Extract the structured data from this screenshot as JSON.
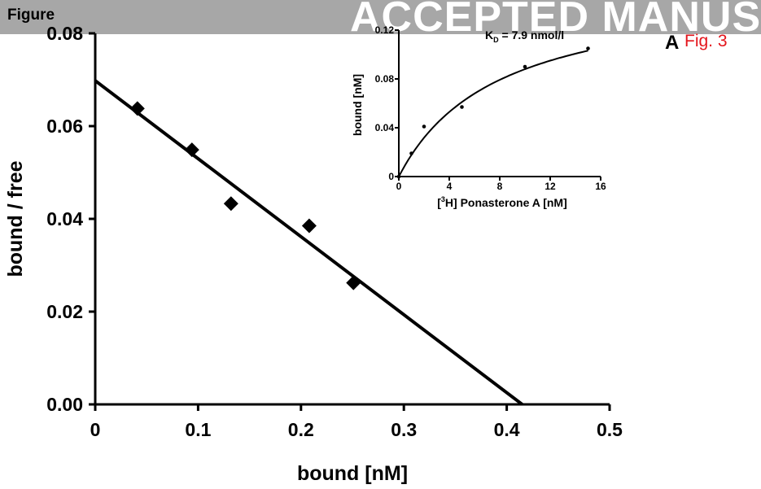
{
  "banner": {
    "text": "ACCEPTED MANUS"
  },
  "figure_label": "Figure",
  "panel_letter": "A",
  "fig_number": "Fig. 3",
  "colors": {
    "banner_bg": "#a7a7a7",
    "fig_number": "#e4141b",
    "ink": "#000000"
  },
  "chart_data": [
    {
      "type": "scatter",
      "title": "",
      "xlabel": "bound [nM]",
      "ylabel": "bound / free",
      "xlim": [
        0,
        0.5
      ],
      "ylim": [
        0,
        0.08
      ],
      "x_ticks": [
        "0",
        "0.1",
        "0.2",
        "0.3",
        "0.4",
        "0.5"
      ],
      "x_tick_values": [
        0,
        0.1,
        0.2,
        0.3,
        0.4,
        0.5
      ],
      "y_ticks": [
        "0.00",
        "0.02",
        "0.04",
        "0.06",
        "0.08"
      ],
      "y_tick_values": [
        0,
        0.02,
        0.04,
        0.06,
        0.08
      ],
      "grid": false,
      "marker": "diamond",
      "points": [
        {
          "x": 0.041,
          "y": 0.0638
        },
        {
          "x": 0.094,
          "y": 0.0549
        },
        {
          "x": 0.132,
          "y": 0.0433
        },
        {
          "x": 0.208,
          "y": 0.0385
        },
        {
          "x": 0.251,
          "y": 0.0262
        }
      ],
      "fit_line": {
        "x": [
          0,
          0.415
        ],
        "y": [
          0.0698,
          0
        ]
      }
    },
    {
      "type": "line",
      "title": "",
      "annotation": {
        "prefix": "K",
        "subscript": "D",
        "suffix": " = 7.9 nmol/l"
      },
      "xlabel": {
        "prefix": "[",
        "superscript": "3",
        "suffix": "H] Ponasterone A [nM]"
      },
      "ylabel": "bound [nM]",
      "xlim": [
        0,
        16
      ],
      "ylim": [
        0,
        0.12
      ],
      "x_ticks": [
        "0",
        "4",
        "8",
        "12",
        "16"
      ],
      "x_tick_values": [
        0,
        4,
        8,
        12,
        16
      ],
      "y_ticks": [
        "0",
        "0.04",
        "0.08",
        "0.12"
      ],
      "y_tick_values": [
        0,
        0.04,
        0.08,
        0.12
      ],
      "grid": false,
      "points": [
        {
          "x": 0,
          "y": 0
        },
        {
          "x": 1,
          "y": 0.019
        },
        {
          "x": 2,
          "y": 0.041
        },
        {
          "x": 5,
          "y": 0.057
        },
        {
          "x": 10,
          "y": 0.09
        },
        {
          "x": 15,
          "y": 0.105
        }
      ],
      "fit_curve": {
        "model": "bmax*x/(kd+x)",
        "bmax": 0.1575,
        "kd": 7.9
      }
    }
  ]
}
